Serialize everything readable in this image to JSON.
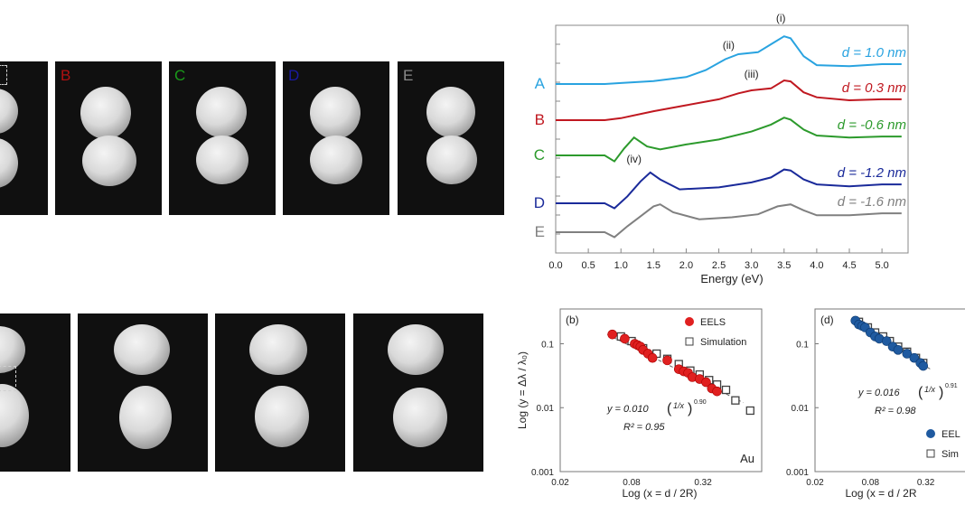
{
  "image_panels": {
    "top_labels": [
      "B",
      "C",
      "D",
      "E"
    ],
    "top_label_colors": [
      "#b01010",
      "#1a9a1a",
      "#1a1aa0",
      "#8a8a8a"
    ]
  },
  "chart_data": [
    {
      "type": "line",
      "title": "",
      "xlabel": "Energy (eV)",
      "ylabel": "",
      "xlim": [
        0,
        5.4
      ],
      "x_ticks": [
        "0.0",
        "0.5",
        "1.0",
        "1.5",
        "2.0",
        "2.5",
        "3.0",
        "3.5",
        "4.0",
        "4.5",
        "5.0"
      ],
      "series": [
        {
          "name": "A",
          "label": "d = 1.0 nm",
          "color": "#29a3e0",
          "x": [
            0.75,
            1.0,
            1.5,
            2.0,
            2.3,
            2.6,
            2.8,
            3.1,
            3.3,
            3.5,
            3.6,
            3.8,
            4.0,
            4.5,
            5.0,
            5.3
          ],
          "y": [
            0.0,
            0.05,
            0.15,
            0.35,
            0.7,
            1.25,
            1.5,
            1.6,
            2.0,
            2.4,
            2.3,
            1.4,
            0.95,
            0.9,
            1.0,
            1.0
          ]
        },
        {
          "name": "B",
          "label": "d = 0.3 nm",
          "color": "#c01820",
          "x": [
            0.75,
            1.0,
            1.5,
            2.0,
            2.5,
            2.8,
            3.0,
            3.3,
            3.5,
            3.6,
            3.8,
            4.0,
            4.5,
            5.0,
            5.3
          ],
          "y": [
            0.0,
            0.1,
            0.45,
            0.75,
            1.05,
            1.35,
            1.5,
            1.6,
            2.0,
            1.95,
            1.4,
            1.15,
            1.0,
            1.05,
            1.05
          ]
        },
        {
          "name": "C",
          "label": "d = -0.6 nm",
          "color": "#2c9a2c",
          "x": [
            0.75,
            0.9,
            1.05,
            1.2,
            1.4,
            1.6,
            2.0,
            2.5,
            3.0,
            3.3,
            3.5,
            3.6,
            3.8,
            4.0,
            4.5,
            5.0,
            5.3
          ],
          "y": [
            0.0,
            -0.3,
            0.35,
            0.9,
            0.45,
            0.3,
            0.55,
            0.8,
            1.2,
            1.55,
            1.9,
            1.8,
            1.3,
            1.0,
            0.9,
            0.95,
            0.95
          ]
        },
        {
          "name": "D",
          "label": "d = -1.2 nm",
          "color": "#1a2a9a",
          "x": [
            0.75,
            0.9,
            1.1,
            1.3,
            1.45,
            1.6,
            1.9,
            2.5,
            3.0,
            3.3,
            3.5,
            3.6,
            3.8,
            4.0,
            4.5,
            5.0,
            5.3
          ],
          "y": [
            0.0,
            -0.25,
            0.35,
            1.1,
            1.55,
            1.2,
            0.7,
            0.8,
            1.05,
            1.3,
            1.7,
            1.65,
            1.2,
            0.95,
            0.85,
            0.95,
            0.95
          ]
        },
        {
          "name": "E",
          "label": "d = -1.6 nm",
          "color": "#808080",
          "x": [
            0.75,
            0.9,
            1.1,
            1.3,
            1.5,
            1.6,
            1.8,
            2.2,
            2.7,
            3.1,
            3.4,
            3.6,
            3.8,
            4.0,
            4.5,
            5.0,
            5.3
          ],
          "y": [
            0.0,
            -0.25,
            0.3,
            0.8,
            1.3,
            1.4,
            1.0,
            0.65,
            0.75,
            0.9,
            1.3,
            1.4,
            1.1,
            0.85,
            0.85,
            0.95,
            0.95
          ]
        }
      ],
      "annotations": [
        "(i)",
        "(ii)",
        "(iii)",
        "(iv)"
      ]
    },
    {
      "type": "scatter",
      "panel_label": "(b)",
      "xlabel": "Log (x =  d / 2R)",
      "ylabel": "Log (y = Δλ / λ₀)",
      "x_scale": "log",
      "y_scale": "log",
      "x_ticks": [
        "0.02",
        "0.08",
        "0.32"
      ],
      "y_ticks": [
        "0.1",
        "0.01",
        "0.001"
      ],
      "legend": [
        "EELS",
        "Simulation"
      ],
      "legend_position": "top-right",
      "equation": "y = 0.010",
      "equation_paren": "1/x",
      "equation_exp": "0.90",
      "r2": "R² = 0.95",
      "corner_label": "Au",
      "series": [
        {
          "name": "EELS",
          "color": "#e02020",
          "x": [
            0.055,
            0.07,
            0.085,
            0.09,
            0.095,
            0.1,
            0.11,
            0.12,
            0.16,
            0.2,
            0.22,
            0.24,
            0.26,
            0.3,
            0.34,
            0.38,
            0.42
          ],
          "y": [
            0.14,
            0.12,
            0.1,
            0.095,
            0.09,
            0.08,
            0.07,
            0.06,
            0.055,
            0.04,
            0.037,
            0.035,
            0.03,
            0.028,
            0.025,
            0.02,
            0.018
          ]
        },
        {
          "name": "Simulation",
          "color": "#404040",
          "x": [
            0.065,
            0.08,
            0.1,
            0.13,
            0.16,
            0.2,
            0.25,
            0.3,
            0.36,
            0.42,
            0.5,
            0.6,
            0.8
          ],
          "y": [
            0.13,
            0.11,
            0.085,
            0.07,
            0.058,
            0.048,
            0.038,
            0.033,
            0.027,
            0.023,
            0.019,
            0.013,
            0.009
          ]
        }
      ]
    },
    {
      "type": "scatter",
      "panel_label": "(d)",
      "x_scale": "log",
      "y_scale": "log",
      "x_ticks": [
        "0.02",
        "0.08",
        "0.32"
      ],
      "y_ticks": [
        "0.1",
        "0.01",
        "0.001"
      ],
      "xlabel": "Log (x =  d / 2R",
      "legend": [
        "EEL",
        "Sim"
      ],
      "equation": "y = 0.016",
      "equation_paren": "1/x",
      "equation_exp": "0.91",
      "r2": "R² = 0.98",
      "series": [
        {
          "name": "EELS",
          "color": "#1f5aa0",
          "x": [
            0.055,
            0.06,
            0.065,
            0.07,
            0.08,
            0.09,
            0.1,
            0.12,
            0.14,
            0.16,
            0.2,
            0.24,
            0.28,
            0.3
          ],
          "y": [
            0.23,
            0.2,
            0.19,
            0.18,
            0.15,
            0.13,
            0.12,
            0.11,
            0.09,
            0.08,
            0.07,
            0.06,
            0.05,
            0.045
          ]
        },
        {
          "name": "Simulation",
          "color": "#404040",
          "x": [
            0.06,
            0.075,
            0.09,
            0.11,
            0.13,
            0.16,
            0.2,
            0.25,
            0.3
          ],
          "y": [
            0.22,
            0.18,
            0.15,
            0.13,
            0.11,
            0.09,
            0.075,
            0.06,
            0.05
          ]
        }
      ]
    }
  ]
}
